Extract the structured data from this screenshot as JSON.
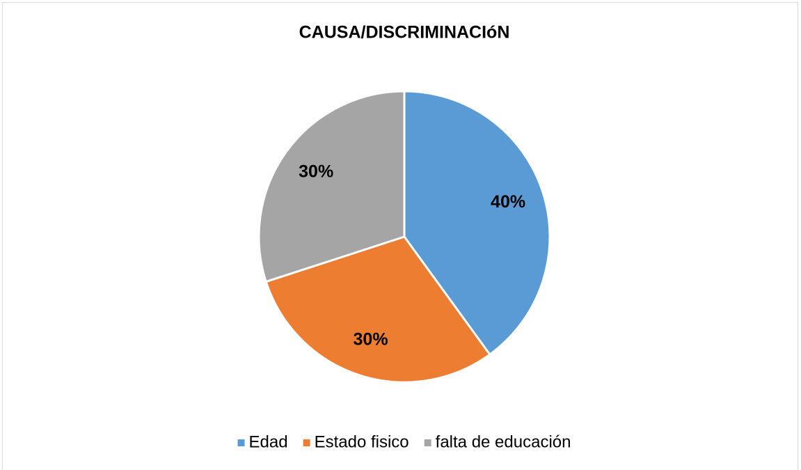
{
  "chart_data": {
    "type": "pie",
    "title": "CAUSA/DISCRIMINACIóN",
    "categories": [
      "Edad",
      "Estado fisico",
      "falta de educación"
    ],
    "values": [
      40,
      30,
      30
    ],
    "value_labels": [
      "40%",
      "30%",
      "30%"
    ],
    "colors": [
      "#5b9bd5",
      "#ed7d31",
      "#a5a5a5"
    ],
    "legend": "bottom"
  }
}
